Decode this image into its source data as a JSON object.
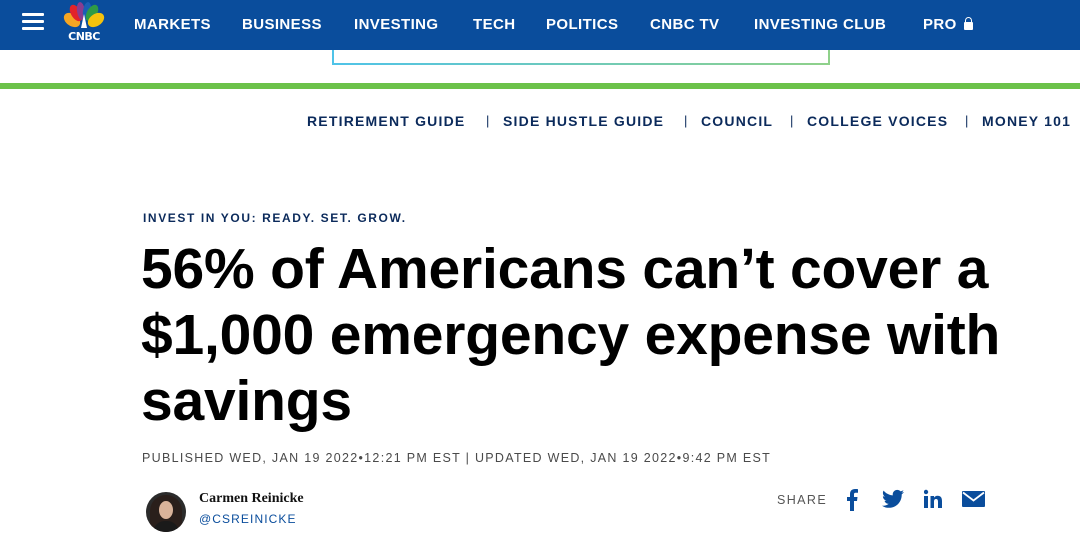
{
  "brand": {
    "name": "CNBC",
    "nav_color": "#0a4d9c",
    "accent_green": "#6cc24a"
  },
  "nav": {
    "items": [
      {
        "label": "MARKETS"
      },
      {
        "label": "BUSINESS"
      },
      {
        "label": "INVESTING"
      },
      {
        "label": "TECH"
      },
      {
        "label": "POLITICS"
      },
      {
        "label": "CNBC TV"
      },
      {
        "label": "INVESTING CLUB"
      },
      {
        "label": "PRO",
        "icon": "lock-icon"
      }
    ]
  },
  "subnav": {
    "items": [
      {
        "label": "RETIREMENT GUIDE"
      },
      {
        "label": "SIDE HUSTLE GUIDE"
      },
      {
        "label": "COUNCIL"
      },
      {
        "label": "COLLEGE VOICES"
      },
      {
        "label": "MONEY 101"
      }
    ],
    "separator": "|"
  },
  "article": {
    "kicker": "INVEST IN YOU: READY. SET. GROW.",
    "headline_lines": [
      "56% of Americans can’t cover a",
      "$1,000 emergency expense with",
      "savings"
    ],
    "dateline": "PUBLISHED WED, JAN 19 2022•12:21 PM EST | UPDATED WED, JAN 19 2022•9:42 PM EST"
  },
  "author": {
    "name": "Carmen Reinicke",
    "handle": "@CSREINICKE"
  },
  "share": {
    "label": "SHARE",
    "icons": [
      "facebook-icon",
      "twitter-icon",
      "linkedin-icon",
      "email-icon"
    ]
  }
}
